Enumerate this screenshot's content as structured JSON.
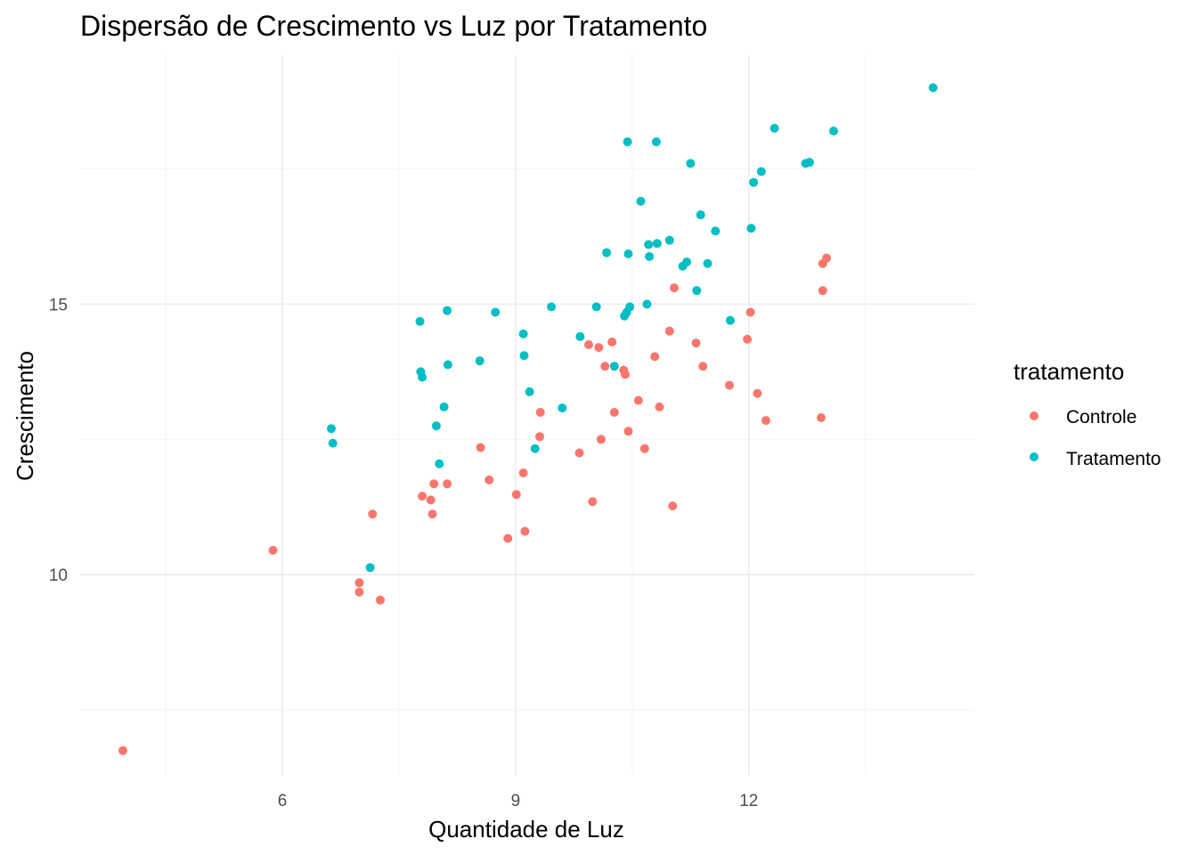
{
  "chart_data": {
    "type": "scatter",
    "title": "Dispersão de Crescimento vs Luz por Tratamento",
    "xlabel": "Quantidade de Luz",
    "ylabel": "Crescimento",
    "xlim": [
      3.4,
      14.9
    ],
    "ylim": [
      6.3,
      19.6
    ],
    "x_ticks": [
      6,
      9,
      12
    ],
    "y_ticks": [
      10,
      15
    ],
    "x_tick_labels": [
      "6",
      "9",
      "12"
    ],
    "y_tick_labels": [
      "10",
      "15"
    ],
    "grid": true,
    "legend": {
      "title": "tratamento",
      "position": "right"
    },
    "series": [
      {
        "name": "Controle",
        "color": "#F8766D",
        "points": [
          [
            3.95,
            6.75
          ],
          [
            5.88,
            10.45
          ],
          [
            6.99,
            9.85
          ],
          [
            6.99,
            9.68
          ],
          [
            7.16,
            11.12
          ],
          [
            7.26,
            9.53
          ],
          [
            7.8,
            11.45
          ],
          [
            7.91,
            11.38
          ],
          [
            7.93,
            11.12
          ],
          [
            7.95,
            11.68
          ],
          [
            8.12,
            11.68
          ],
          [
            8.55,
            12.35
          ],
          [
            8.66,
            11.75
          ],
          [
            8.9,
            10.67
          ],
          [
            9.01,
            11.48
          ],
          [
            9.1,
            11.88
          ],
          [
            9.12,
            10.8
          ],
          [
            9.31,
            12.55
          ],
          [
            9.32,
            13.0
          ],
          [
            9.82,
            12.25
          ],
          [
            9.94,
            14.25
          ],
          [
            9.99,
            11.35
          ],
          [
            10.07,
            14.2
          ],
          [
            10.1,
            12.5
          ],
          [
            10.15,
            13.85
          ],
          [
            10.24,
            14.3
          ],
          [
            10.27,
            13.0
          ],
          [
            10.39,
            13.78
          ],
          [
            10.41,
            13.7
          ],
          [
            10.45,
            12.65
          ],
          [
            10.58,
            13.22
          ],
          [
            10.66,
            12.33
          ],
          [
            10.79,
            14.03
          ],
          [
            10.85,
            13.1
          ],
          [
            10.98,
            14.5
          ],
          [
            11.02,
            11.27
          ],
          [
            11.04,
            15.3
          ],
          [
            11.32,
            14.28
          ],
          [
            11.41,
            13.85
          ],
          [
            11.75,
            13.5
          ],
          [
            11.98,
            14.35
          ],
          [
            12.02,
            14.85
          ],
          [
            12.11,
            13.35
          ],
          [
            12.22,
            12.85
          ],
          [
            12.93,
            12.9
          ],
          [
            12.95,
            15.25
          ],
          [
            12.95,
            15.75
          ],
          [
            13.0,
            15.85
          ]
        ]
      },
      {
        "name": "Tratamento",
        "color": "#00BFC4",
        "points": [
          [
            6.63,
            12.7
          ],
          [
            6.65,
            12.43
          ],
          [
            7.13,
            10.13
          ],
          [
            7.77,
            14.68
          ],
          [
            7.78,
            13.75
          ],
          [
            7.8,
            13.65
          ],
          [
            7.98,
            12.75
          ],
          [
            8.02,
            12.05
          ],
          [
            8.08,
            13.1
          ],
          [
            8.12,
            14.88
          ],
          [
            8.13,
            13.88
          ],
          [
            8.54,
            13.95
          ],
          [
            8.74,
            14.85
          ],
          [
            9.1,
            14.45
          ],
          [
            9.11,
            14.05
          ],
          [
            9.18,
            13.38
          ],
          [
            9.25,
            12.33
          ],
          [
            9.46,
            14.95
          ],
          [
            9.6,
            13.08
          ],
          [
            9.83,
            14.4
          ],
          [
            10.04,
            14.95
          ],
          [
            10.17,
            15.95
          ],
          [
            10.27,
            13.85
          ],
          [
            10.4,
            14.78
          ],
          [
            10.43,
            14.85
          ],
          [
            10.44,
            18.0
          ],
          [
            10.45,
            15.93
          ],
          [
            10.47,
            14.95
          ],
          [
            10.61,
            16.9
          ],
          [
            10.69,
            15.0
          ],
          [
            10.71,
            16.1
          ],
          [
            10.72,
            15.88
          ],
          [
            10.81,
            18.0
          ],
          [
            10.82,
            16.12
          ],
          [
            10.98,
            16.18
          ],
          [
            11.15,
            15.7
          ],
          [
            11.2,
            15.78
          ],
          [
            11.25,
            17.6
          ],
          [
            11.33,
            15.25
          ],
          [
            11.38,
            16.65
          ],
          [
            11.47,
            15.75
          ],
          [
            11.57,
            16.35
          ],
          [
            11.76,
            14.7
          ],
          [
            12.03,
            16.4
          ],
          [
            12.06,
            17.25
          ],
          [
            12.16,
            17.45
          ],
          [
            12.33,
            18.25
          ],
          [
            12.73,
            17.6
          ],
          [
            12.78,
            17.62
          ],
          [
            13.09,
            18.2
          ],
          [
            14.37,
            19.0
          ]
        ]
      }
    ]
  }
}
